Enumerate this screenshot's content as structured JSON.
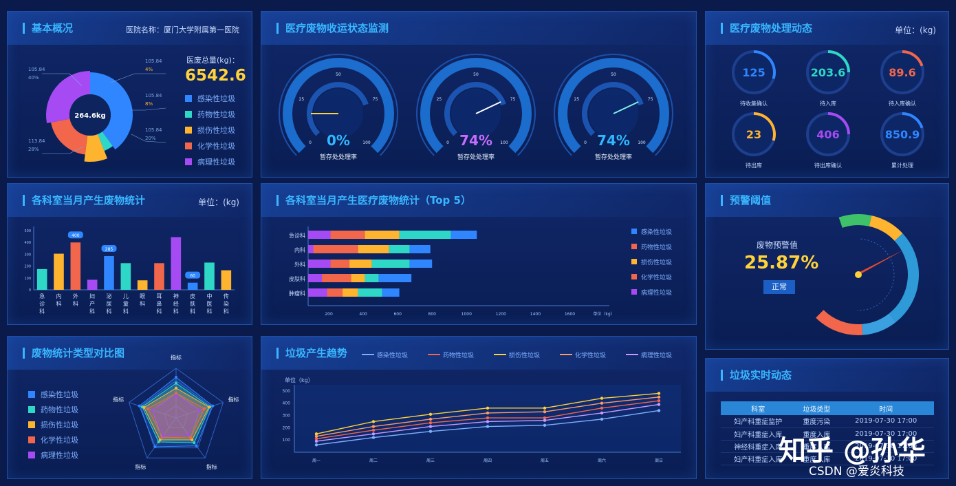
{
  "colors": {
    "blue": "#2f86ff",
    "teal": "#2fd8c6",
    "orange": "#ffb42f",
    "red": "#f2664c",
    "purple": "#a64bf4",
    "accent": "#39b6ff",
    "yellow_text": "#ffd23a"
  },
  "basic": {
    "title": "基本概况",
    "hospital_label": "医院名称：厦门大学附属第一医院",
    "total_label": "医废总量(kg)：",
    "total_value": "6542.6",
    "donut_center": "264.6kg",
    "callouts": [
      {
        "v": "105.84",
        "p": "40%"
      },
      {
        "v": "105.84",
        "p": "4%"
      },
      {
        "v": "105.84",
        "p": "8%"
      },
      {
        "v": "105.84",
        "p": "20%"
      },
      {
        "v": "113.84",
        "p": "28%"
      }
    ]
  },
  "waste_types": [
    "感染性垃圾",
    "药物性垃圾",
    "损伤性垃圾",
    "化学性垃圾",
    "病理性垃圾"
  ],
  "gauges": {
    "title": "医疗废物收运状态监测",
    "items": [
      {
        "value": "0%",
        "label": "暂存处处理率",
        "pct": 0,
        "color": "#2fb8ff"
      },
      {
        "value": "74%",
        "label": "暂存处处理率",
        "pct": 74,
        "color": "#c86cff"
      },
      {
        "value": "74%",
        "label": "暂存处处理率",
        "pct": 74,
        "color": "#2fb8ff"
      }
    ],
    "ticks": [
      "0",
      "25",
      "50",
      "75",
      "100"
    ]
  },
  "dynamics": {
    "title": "医疗废物处理动态",
    "unit": "单位：(kg)",
    "items": [
      {
        "value": "125",
        "label": "待收集确认",
        "color": "#2f86ff",
        "pct": 0.3
      },
      {
        "value": "203.6",
        "label": "待入库",
        "color": "#2fd8c6",
        "pct": 0.25
      },
      {
        "value": "89.6",
        "label": "待入库确认",
        "color": "#f2664c",
        "pct": 0.2
      },
      {
        "value": "23",
        "label": "待出库",
        "color": "#ffb42f",
        "pct": 0.3
      },
      {
        "value": "406",
        "label": "待出库确认",
        "color": "#a64bf4",
        "pct": 0.25
      },
      {
        "value": "850.9",
        "label": "累计处理",
        "color": "#2f86ff",
        "pct": 0.2
      }
    ]
  },
  "dept_bar": {
    "title": "各科室当月产生废物统计",
    "unit": "单位：(kg)"
  },
  "top5": {
    "title": "各科室当月产生医疗废物统计（Top 5）",
    "unit_label": "单位（kg）"
  },
  "warning": {
    "title": "预警阈值",
    "label": "废物预警值",
    "value": "25.87%",
    "status": "正常"
  },
  "radar": {
    "title": "废物统计类型对比图"
  },
  "trend": {
    "title": "垃圾产生趋势",
    "unit": "单位（kg）"
  },
  "realtime": {
    "title": "垃圾实时动态",
    "headers": [
      "科室",
      "垃圾类型",
      "时间"
    ],
    "rows": [
      [
        "妇产科重症监护",
        "重度污染",
        "2019-07-30  17:00"
      ],
      [
        "妇产科重症入库",
        "重度入库",
        "2019-07-30  17:00"
      ],
      [
        "神经科重症入库",
        "重度入库",
        "2019-07-30  17:00"
      ],
      [
        "妇产科重症入库",
        "重度入库",
        "2019-07-30  17:00"
      ]
    ]
  },
  "watermark": "知乎 @孙华",
  "csdn": "CSDN @爱炎科技",
  "chart_data": [
    {
      "type": "pie",
      "title": "",
      "center_label": "264.6kg",
      "categories": [
        "感染性垃圾",
        "药物性垃圾",
        "损伤性垃圾",
        "化学性垃圾",
        "病理性垃圾"
      ],
      "values": [
        40,
        4,
        8,
        20,
        28
      ]
    },
    {
      "type": "bar",
      "title": "各科室当月产生废物统计",
      "categories": [
        "急诊科",
        "内科",
        "外科",
        "妇产科",
        "泌尿科",
        "儿童科",
        "眼科",
        "耳鼻科",
        "神经科",
        "皮肤科",
        "中医科",
        "传染科"
      ],
      "values": [
        175,
        305,
        400,
        85,
        285,
        225,
        80,
        225,
        445,
        60,
        230,
        165
      ],
      "ylim": [
        0,
        500
      ],
      "yticks": [
        "0",
        "100",
        "200",
        "300",
        "400",
        "500"
      ],
      "data_labels": [
        {
          "index": 2,
          "text": "400"
        },
        {
          "index": 4,
          "text": "285"
        },
        {
          "index": 9,
          "text": "60"
        }
      ],
      "bar_colors": [
        "#2fd8c6",
        "#ffb42f",
        "#f2664c",
        "#a64bf4",
        "#2f86ff",
        "#2fd8c6",
        "#ffb42f",
        "#f2664c",
        "#a64bf4",
        "#2f86ff",
        "#2fd8c6",
        "#ffb42f"
      ]
    },
    {
      "type": "bar",
      "orientation": "horizontal",
      "stacked": true,
      "title": "各科室当月产生医疗废物统计（Top 5）",
      "categories": [
        "急诊科",
        "内科",
        "外科",
        "皮肤科",
        "肿瘤科"
      ],
      "x_ticks": [
        "200",
        "400",
        "600",
        "800",
        "1000",
        "1200",
        "1400",
        "1600"
      ],
      "xlim": [
        0,
        1750
      ],
      "series": [
        {
          "name": "病理性垃圾",
          "color": "#a64bf4",
          "values": [
            130,
            30,
            130,
            80,
            110
          ]
        },
        {
          "name": "化学性垃圾",
          "color": "#f2664c",
          "values": [
            200,
            260,
            110,
            170,
            90
          ]
        },
        {
          "name": "损伤性垃圾",
          "color": "#ffb42f",
          "values": [
            200,
            180,
            130,
            80,
            90
          ]
        },
        {
          "name": "药物性垃圾",
          "color": "#2fd8c6",
          "values": [
            300,
            120,
            220,
            80,
            140
          ]
        },
        {
          "name": "感染性垃圾",
          "color": "#2f86ff",
          "values": [
            150,
            120,
            130,
            190,
            100
          ]
        }
      ],
      "legend": [
        "感染性垃圾",
        "药物性垃圾",
        "损伤性垃圾",
        "化学性垃圾",
        "病理性垃圾"
      ],
      "legend_colors": [
        "#2f86ff",
        "#f2664c",
        "#ffb42f",
        "#f2664c",
        "#a64bf4"
      ]
    },
    {
      "type": "radar",
      "title": "废物统计类型对比图",
      "axes": [
        "指标",
        "指标",
        "指标",
        "指标",
        "指标"
      ],
      "series": [
        {
          "name": "感染性垃圾",
          "color": "#2f86ff",
          "values": [
            0.82,
            0.78,
            0.7,
            0.72,
            0.78
          ]
        },
        {
          "name": "药物性垃圾",
          "color": "#2fd8c6",
          "values": [
            0.7,
            0.72,
            0.62,
            0.6,
            0.72
          ]
        },
        {
          "name": "损伤性垃圾",
          "color": "#ffb42f",
          "values": [
            0.6,
            0.7,
            0.55,
            0.55,
            0.68
          ]
        },
        {
          "name": "化学性垃圾",
          "color": "#f2664c",
          "values": [
            0.5,
            0.6,
            0.5,
            0.48,
            0.6
          ]
        },
        {
          "name": "病理性垃圾",
          "color": "#a64bf4",
          "values": [
            0.45,
            0.5,
            0.42,
            0.45,
            0.5
          ]
        }
      ]
    },
    {
      "type": "line",
      "title": "垃圾产生趋势",
      "categories": [
        "周一",
        "周二",
        "周三",
        "周四",
        "周五",
        "周六",
        "周日"
      ],
      "yticks": [
        "100",
        "200",
        "300",
        "400",
        "500"
      ],
      "ylim": [
        0,
        550
      ],
      "series": [
        {
          "name": "感染性垃圾",
          "color": "#7fb0ff",
          "values": [
            60,
            120,
            170,
            210,
            220,
            270,
            340
          ]
        },
        {
          "name": "药物性垃圾",
          "color": "#f2664c",
          "values": [
            110,
            180,
            240,
            280,
            280,
            360,
            420
          ]
        },
        {
          "name": "损伤性垃圾",
          "color": "#ffd23a",
          "values": [
            150,
            250,
            310,
            360,
            360,
            440,
            480
          ]
        },
        {
          "name": "化学性垃圾",
          "color": "#ff9a6a",
          "values": [
            130,
            210,
            270,
            320,
            330,
            400,
            450
          ]
        },
        {
          "name": "病理性垃圾",
          "color": "#c89aff",
          "values": [
            90,
            150,
            210,
            250,
            260,
            320,
            390
          ]
        }
      ]
    }
  ]
}
